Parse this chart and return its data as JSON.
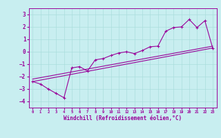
{
  "xlabel": "Windchill (Refroidissement éolien,°C)",
  "background_color": "#c8eef0",
  "grid_color": "#aadddd",
  "line_color": "#990099",
  "xlim": [
    -0.5,
    23.5
  ],
  "ylim": [
    -4.5,
    3.5
  ],
  "yticks": [
    -4,
    -3,
    -2,
    -1,
    0,
    1,
    2,
    3
  ],
  "xticks": [
    0,
    1,
    2,
    3,
    4,
    5,
    6,
    7,
    8,
    9,
    10,
    11,
    12,
    13,
    14,
    15,
    16,
    17,
    18,
    19,
    20,
    21,
    22,
    23
  ],
  "series1_x": [
    0,
    1,
    2,
    3,
    4,
    5,
    6,
    7,
    8,
    9,
    10,
    11,
    12,
    13,
    14,
    15,
    16,
    17,
    18,
    19,
    20,
    21,
    22,
    23
  ],
  "series1_y": [
    -2.4,
    -2.6,
    -3.0,
    -3.35,
    -3.7,
    -1.3,
    -1.2,
    -1.55,
    -0.65,
    -0.55,
    -0.3,
    -0.1,
    0.0,
    -0.15,
    0.1,
    0.4,
    0.45,
    1.65,
    1.95,
    2.0,
    2.6,
    1.95,
    2.5,
    0.3
  ],
  "series2_x": [
    0,
    23
  ],
  "series2_y": [
    -2.4,
    0.3
  ],
  "series3_x": [
    0,
    23
  ],
  "series3_y": [
    -2.2,
    0.45
  ],
  "fig_width": 3.2,
  "fig_height": 2.0,
  "dpi": 100
}
